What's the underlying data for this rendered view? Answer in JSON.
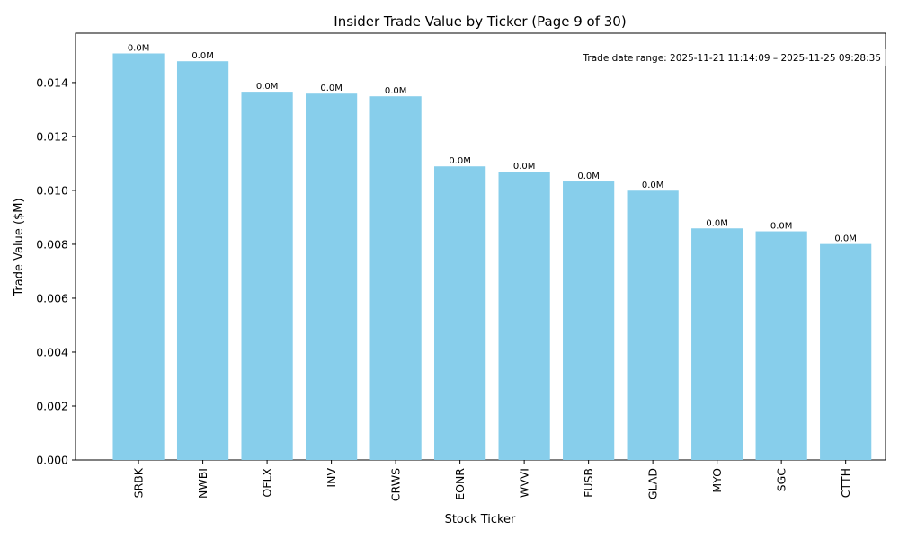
{
  "chart_data": {
    "type": "bar",
    "title": "Insider Trade Value by Ticker (Page 9 of 30)",
    "xlabel": "Stock Ticker",
    "ylabel": "Trade Value ($M)",
    "categories": [
      "SRBK",
      "NWBI",
      "OFLX",
      "INV",
      "CRWS",
      "EONR",
      "WVVI",
      "FUSB",
      "GLAD",
      "MYO",
      "SGC",
      "CTTH"
    ],
    "values": [
      0.01508,
      0.01479,
      0.01366,
      0.01359,
      0.01349,
      0.01089,
      0.01069,
      0.01033,
      0.00999,
      0.00859,
      0.00848,
      0.00801
    ],
    "data_labels": [
      "0.0M",
      "0.0M",
      "0.0M",
      "0.0M",
      "0.0M",
      "0.0M",
      "0.0M",
      "0.0M",
      "0.0M",
      "0.0M",
      "0.0M",
      "0.0M"
    ],
    "ylim": [
      0,
      0.01583
    ],
    "yticks": [
      0.0,
      0.002,
      0.004,
      0.006,
      0.008,
      0.01,
      0.012,
      0.014
    ],
    "ytick_labels": [
      "0.000",
      "0.002",
      "0.004",
      "0.006",
      "0.008",
      "0.010",
      "0.012",
      "0.014"
    ],
    "bar_color": "#87ceeb",
    "annotation": "Trade date range: 2025-11-21 11:14:09 – 2025-11-25 09:28:35",
    "grid": false,
    "legend": "none"
  }
}
